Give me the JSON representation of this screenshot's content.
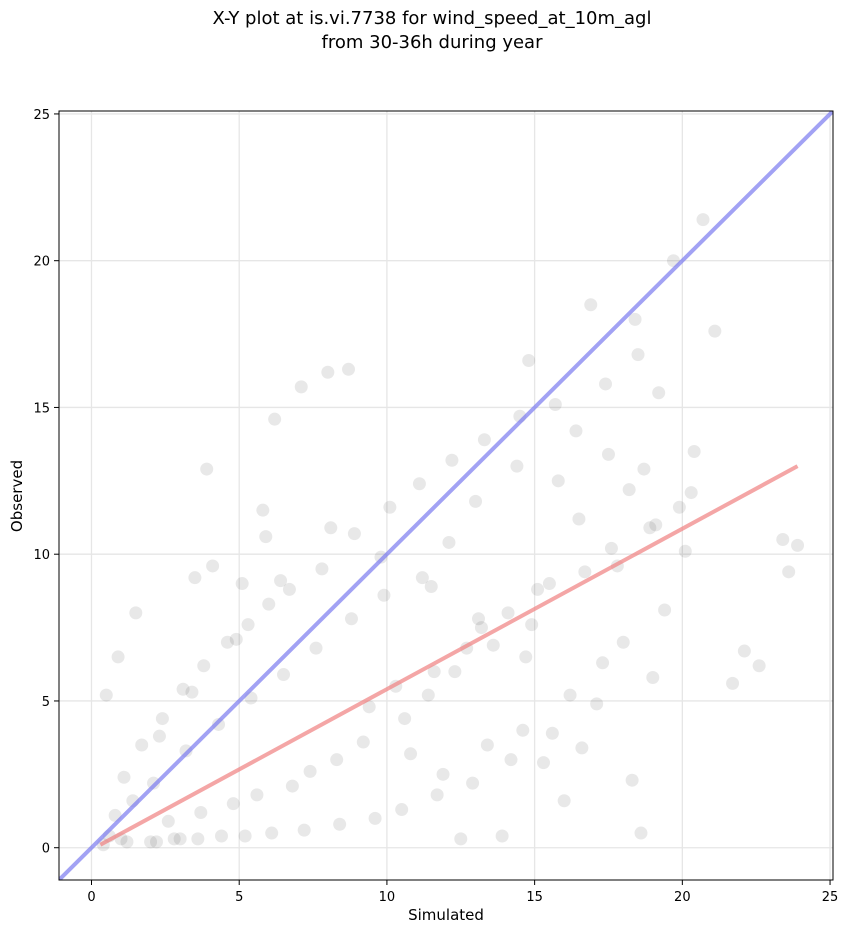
{
  "chart_data": {
    "type": "scatter",
    "title_line1": "X-Y plot at is.vi.7738 for wind_speed_at_10m_agl",
    "title_line2": "from 30-36h during year",
    "xlabel": "Simulated",
    "ylabel": "Observed",
    "xlim": [
      -1.1,
      25.1
    ],
    "ylim": [
      -1.1,
      25.1
    ],
    "xticks": [
      0,
      5,
      10,
      15,
      20,
      25
    ],
    "yticks": [
      0,
      5,
      10,
      15,
      20,
      25
    ],
    "grid": true,
    "colors": {
      "points": "#000000",
      "identity_line": "#7a7af0",
      "fit_line": "#f08080",
      "grid": "#e6e6e6"
    },
    "identity_line": {
      "x": [
        -1.1,
        25.1
      ],
      "y": [
        -1.1,
        25.1
      ]
    },
    "fit_line": {
      "x": [
        0.3,
        23.9
      ],
      "y": [
        0.1,
        13.0
      ]
    },
    "series": [
      {
        "values_note_sample": true,
        "x": [
          20.7,
          21.1,
          18.4,
          16.9,
          14.8,
          8.7,
          8.0,
          7.1,
          6.2,
          5.8,
          3.9,
          23.4,
          23.9,
          23.6,
          21.7,
          22.1,
          22.6,
          20.4,
          19.2,
          18.5,
          17.4,
          3.5,
          4.1,
          5.1,
          5.9,
          1.5,
          0.5,
          0.9,
          19.7,
          18.6,
          18.7,
          16.0,
          15.3,
          13.9,
          12.5,
          2.2,
          3.0,
          0.6,
          1.0,
          13.2,
          14.1,
          15.5,
          12.7,
          11.6,
          10.3,
          9.4,
          10.8,
          11.9,
          13.4,
          14.6,
          16.2,
          17.3,
          18.0,
          19.4,
          17.8,
          16.5,
          15.8,
          14.4,
          13.0,
          12.1,
          11.2,
          9.9,
          8.8,
          7.6,
          6.5,
          5.4,
          4.3,
          3.2,
          2.1,
          1.4,
          0.8,
          2.6,
          3.7,
          4.8,
          5.6,
          6.8,
          7.4,
          8.3,
          9.2,
          10.6,
          11.4,
          12.3,
          13.6,
          14.9,
          15.1,
          16.7,
          17.6,
          18.9,
          19.9,
          20.3,
          19.0,
          17.1,
          15.6,
          14.2,
          12.9,
          11.7,
          10.5,
          9.6,
          8.4,
          7.2,
          6.1,
          5.2,
          4.4,
          3.6,
          2.8,
          2.0,
          1.2,
          0.4,
          1.7,
          2.4,
          3.1,
          3.8,
          4.6,
          5.3,
          6.0,
          6.7,
          7.8,
          8.9,
          10.1,
          11.1,
          12.2,
          13.3,
          14.5,
          15.7,
          16.4,
          17.5,
          18.2,
          19.1,
          20.1,
          18.3,
          16.6,
          14.7,
          13.1,
          11.5,
          9.8,
          8.1,
          6.4,
          4.9,
          3.4,
          2.3,
          1.1
        ],
        "y": [
          21.4,
          17.6,
          18.0,
          18.5,
          16.6,
          16.3,
          16.2,
          15.7,
          14.6,
          11.5,
          12.9,
          10.5,
          10.3,
          9.4,
          5.6,
          6.7,
          6.2,
          13.5,
          15.5,
          16.8,
          15.8,
          9.2,
          9.6,
          9.0,
          10.6,
          8.0,
          5.2,
          6.5,
          20.0,
          0.5,
          12.9,
          1.6,
          2.9,
          0.4,
          0.3,
          0.2,
          0.3,
          0.4,
          0.3,
          7.5,
          8.0,
          9.0,
          6.8,
          6.0,
          5.5,
          4.8,
          3.2,
          2.5,
          3.5,
          4.0,
          5.2,
          6.3,
          7.0,
          8.1,
          9.6,
          11.2,
          12.5,
          13.0,
          11.8,
          10.4,
          9.2,
          8.6,
          7.8,
          6.8,
          5.9,
          5.1,
          4.2,
          3.3,
          2.2,
          1.6,
          1.1,
          0.9,
          1.2,
          1.5,
          1.8,
          2.1,
          2.6,
          3.0,
          3.6,
          4.4,
          5.2,
          6.0,
          6.9,
          7.6,
          8.8,
          9.4,
          10.2,
          10.9,
          11.6,
          12.1,
          5.8,
          4.9,
          3.9,
          3.0,
          2.2,
          1.8,
          1.3,
          1.0,
          0.8,
          0.6,
          0.5,
          0.4,
          0.4,
          0.3,
          0.3,
          0.2,
          0.2,
          0.1,
          3.5,
          4.4,
          5.4,
          6.2,
          7.0,
          7.6,
          8.3,
          8.8,
          9.5,
          10.7,
          11.6,
          12.4,
          13.2,
          13.9,
          14.7,
          15.1,
          14.2,
          13.4,
          12.2,
          11.0,
          10.1,
          2.3,
          3.4,
          6.5,
          7.8,
          8.9,
          9.9,
          10.9,
          9.1,
          7.1,
          5.3,
          3.8,
          2.4
        ]
      }
    ]
  }
}
